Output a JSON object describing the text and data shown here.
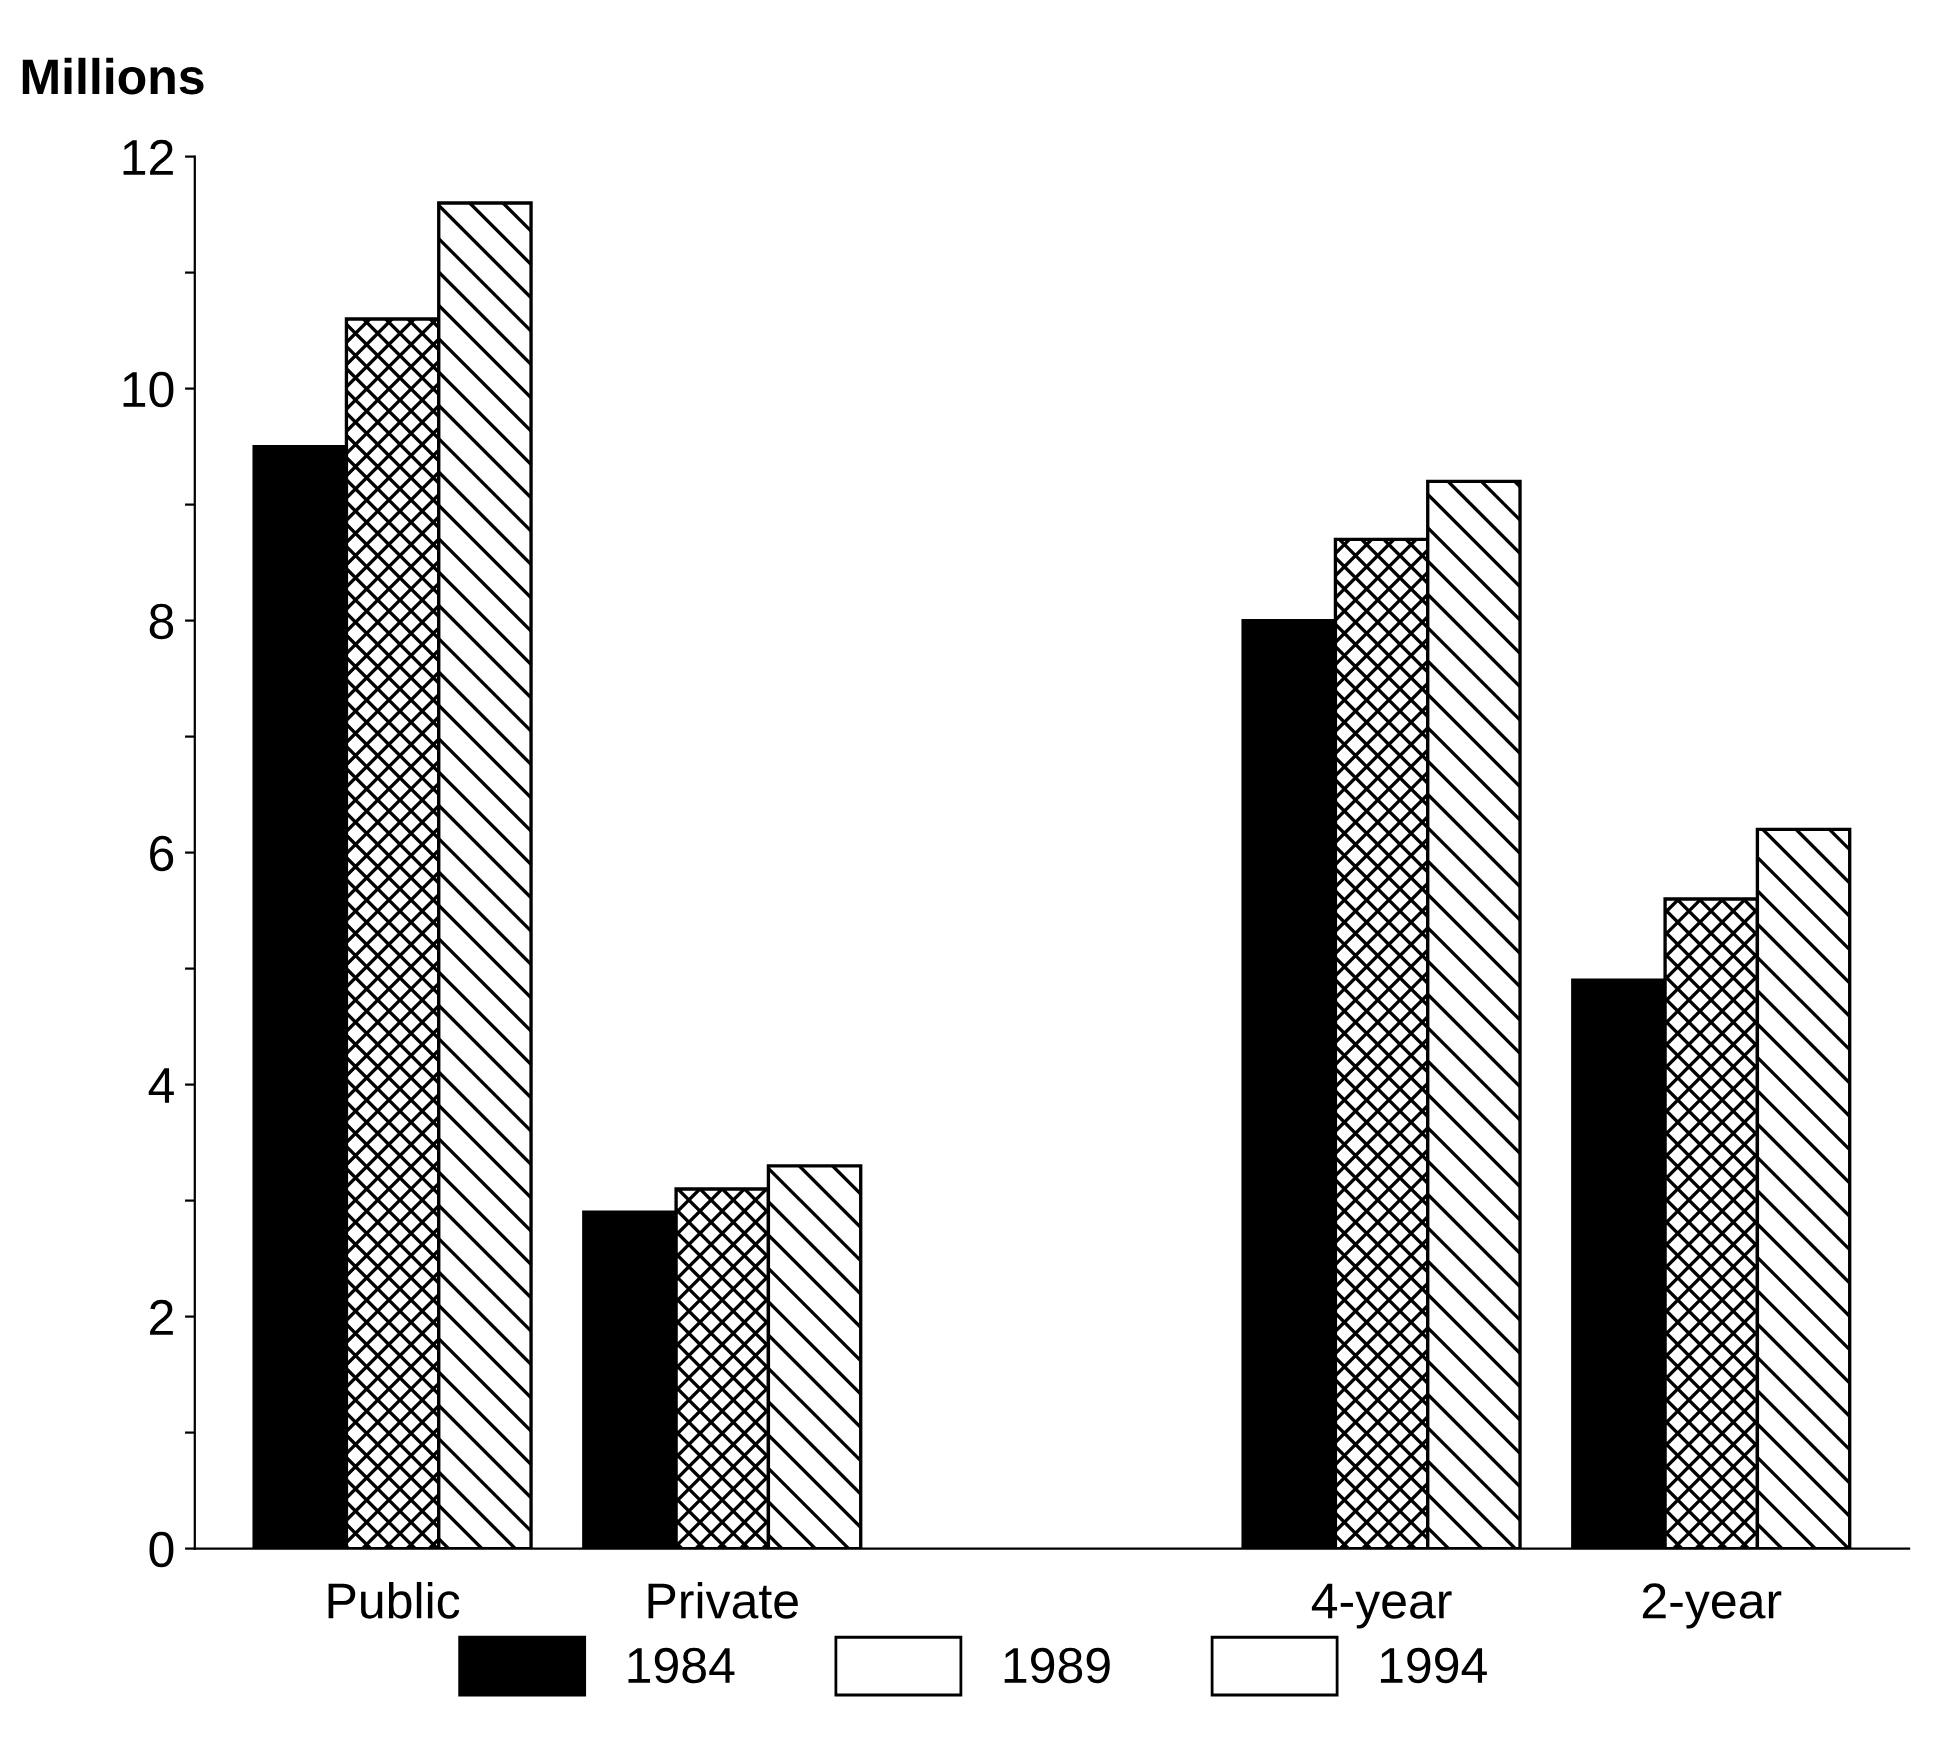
{
  "chart_data": {
    "type": "bar",
    "ylabel": "Millions",
    "categories": [
      "Public",
      "Private",
      null,
      "4-year",
      "2-year"
    ],
    "series": [
      {
        "name": "1984",
        "color": "#000000",
        "values": [
          9.5,
          2.9,
          null,
          8.0,
          4.9
        ]
      },
      {
        "name": "1989",
        "color": "#ffffff",
        "values": [
          10.6,
          3.1,
          null,
          8.7,
          5.6
        ]
      },
      {
        "name": "1994",
        "color": "#ffffff",
        "values": [
          11.6,
          3.3,
          null,
          9.2,
          6.2
        ]
      }
    ],
    "ylim": [
      0,
      12
    ],
    "yticks": [
      0,
      {
        "value": 1,
        "label": null
      },
      2,
      {
        "value": 3,
        "label": null
      },
      4,
      {
        "value": 5,
        "label": null
      },
      6,
      {
        "value": 7,
        "label": null
      },
      8,
      {
        "value": 9,
        "label": null
      },
      10,
      {
        "value": 11,
        "label": null
      },
      12
    ],
    "grid": false,
    "legend": "bottom"
  }
}
